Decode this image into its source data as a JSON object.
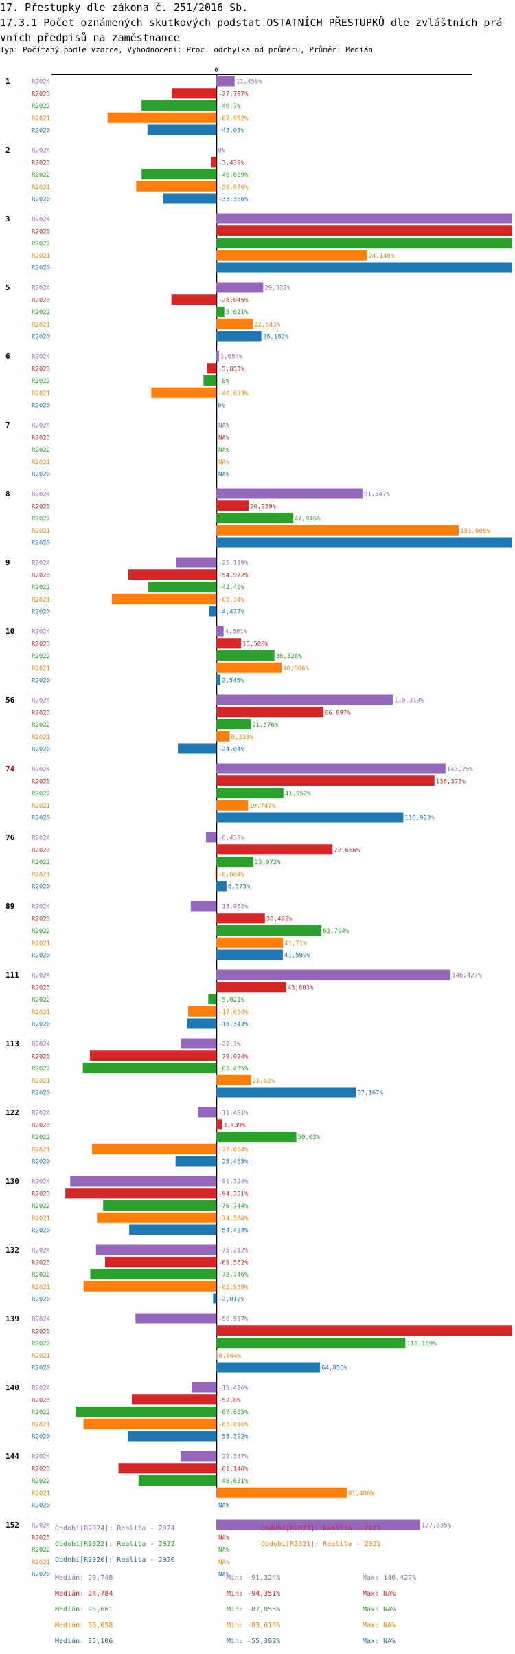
{
  "header": {
    "line1": "17. Přestupky dle zákona č. 251/2016 Sb.",
    "line2": "17.3.1 Počet oznámených skutkových podstat OSTATNÍCH PŘESTUPKŮ dle zvláštních prá",
    "line3": "vních předpisů na zaměstnance",
    "subtitle": "Typ: Počítaný podle vzorce, Vyhodnocení: Proc. odchylka od průměru, Průměr: Medián"
  },
  "colors": {
    "R2024": "#9467bd",
    "R2023": "#d62728",
    "R2022": "#2ca02c",
    "R2021": "#ff7f0e",
    "R2020": "#1f77b4",
    "highlight": "#cc0000",
    "axis": "#000000"
  },
  "chart_data": {
    "type": "bar",
    "orientation": "horizontal",
    "zero_label": "0",
    "xlim": [
      -100,
      185
    ],
    "series_order": [
      "R2024",
      "R2023",
      "R2022",
      "R2021",
      "R2020"
    ],
    "groups": [
      {
        "label": "1",
        "values": {
          "R2024": {
            "v": 11.456,
            "t": "11,456%"
          },
          "R2023": {
            "v": -27.797,
            "t": "-27,797%"
          },
          "R2022": {
            "v": -46.7,
            "t": "-46,7%"
          },
          "R2021": {
            "v": -67.952,
            "t": "-67,952%"
          },
          "R2020": {
            "v": -43.03,
            "t": "-43,03%"
          }
        }
      },
      {
        "label": "2",
        "values": {
          "R2024": {
            "v": 0,
            "t": "0%"
          },
          "R2023": {
            "v": -3.439,
            "t": "-3,439%"
          },
          "R2022": {
            "v": -46.669,
            "t": "-46,669%"
          },
          "R2021": {
            "v": -50.076,
            "t": "-50,076%"
          },
          "R2020": {
            "v": -33.366,
            "t": "-33,366%"
          }
        }
      },
      {
        "label": "3",
        "values": {
          "R2024": {
            "v": 185,
            "t": ""
          },
          "R2023": {
            "v": 185,
            "t": ""
          },
          "R2022": {
            "v": 185,
            "t": ""
          },
          "R2021": {
            "v": 94.148,
            "t": "94,148%"
          },
          "R2020": {
            "v": 185,
            "t": ""
          }
        }
      },
      {
        "label": "5",
        "values": {
          "R2024": {
            "v": 29.332,
            "t": "29,332%"
          },
          "R2023": {
            "v": -28.045,
            "t": "-28,045%"
          },
          "R2022": {
            "v": 5.021,
            "t": "5,021%"
          },
          "R2021": {
            "v": 22.843,
            "t": "22,843%"
          },
          "R2020": {
            "v": 28.182,
            "t": "28,182%"
          }
        }
      },
      {
        "label": "6",
        "values": {
          "R2024": {
            "v": 1.654,
            "t": "1,654%"
          },
          "R2023": {
            "v": -5.853,
            "t": "-5,853%"
          },
          "R2022": {
            "v": -8,
            "t": "-8%"
          },
          "R2021": {
            "v": -40.633,
            "t": "-40,633%"
          },
          "R2020": {
            "v": 0,
            "t": "0%"
          }
        }
      },
      {
        "label": "7",
        "values": {
          "R2024": {
            "v": null,
            "t": "NA%"
          },
          "R2023": {
            "v": null,
            "t": "NA%"
          },
          "R2022": {
            "v": null,
            "t": "NA%"
          },
          "R2021": {
            "v": null,
            "t": "NA%"
          },
          "R2020": {
            "v": null,
            "t": "NA%"
          }
        }
      },
      {
        "label": "8",
        "values": {
          "R2024": {
            "v": 91.347,
            "t": "91,347%"
          },
          "R2023": {
            "v": 20.239,
            "t": "20,239%"
          },
          "R2022": {
            "v": 47.946,
            "t": "47,946%"
          },
          "R2021": {
            "v": 151.608,
            "t": "151,608%"
          },
          "R2020": {
            "v": 185,
            "t": ""
          }
        }
      },
      {
        "label": "9",
        "values": {
          "R2024": {
            "v": -25.119,
            "t": "-25,119%"
          },
          "R2023": {
            "v": -54.972,
            "t": "-54,972%"
          },
          "R2022": {
            "v": -42.46,
            "t": "-42,46%"
          },
          "R2021": {
            "v": -65.34,
            "t": "-65,34%"
          },
          "R2020": {
            "v": -4.477,
            "t": "-4,477%"
          }
        }
      },
      {
        "label": "10",
        "values": {
          "R2024": {
            "v": 4.581,
            "t": "4,581%"
          },
          "R2023": {
            "v": 15.508,
            "t": "15,508%"
          },
          "R2022": {
            "v": 36.326,
            "t": "36,326%"
          },
          "R2021": {
            "v": 40.806,
            "t": "40,806%"
          },
          "R2020": {
            "v": 2.545,
            "t": "2,545%"
          }
        }
      },
      {
        "label": "56",
        "values": {
          "R2024": {
            "v": 110.319,
            "t": "110,319%"
          },
          "R2023": {
            "v": 66.897,
            "t": "66,897%"
          },
          "R2022": {
            "v": 21.576,
            "t": "21,576%"
          },
          "R2021": {
            "v": 8.333,
            "t": "8,333%"
          },
          "R2020": {
            "v": -24.04,
            "t": "-24,04%"
          }
        }
      },
      {
        "label": "74",
        "highlight": true,
        "values": {
          "R2024": {
            "v": 143.25,
            "t": "143,25%"
          },
          "R2023": {
            "v": 136.373,
            "t": "136,373%"
          },
          "R2022": {
            "v": 41.952,
            "t": "41,952%"
          },
          "R2021": {
            "v": 19.747,
            "t": "19,747%"
          },
          "R2020": {
            "v": 116.923,
            "t": "116,923%"
          }
        }
      },
      {
        "label": "76",
        "values": {
          "R2024": {
            "v": -6.439,
            "t": "-6,439%"
          },
          "R2023": {
            "v": 72.666,
            "t": "72,666%"
          },
          "R2022": {
            "v": 23.072,
            "t": "23,072%"
          },
          "R2021": {
            "v": -0.604,
            "t": "-0,604%"
          },
          "R2020": {
            "v": 6.373,
            "t": "6,373%"
          }
        }
      },
      {
        "label": "89",
        "values": {
          "R2024": {
            "v": -15.962,
            "t": "-15,962%"
          },
          "R2023": {
            "v": 30.402,
            "t": "30,402%"
          },
          "R2022": {
            "v": 65.794,
            "t": "65,794%"
          },
          "R2021": {
            "v": 41.71,
            "t": "41,71%"
          },
          "R2020": {
            "v": 41.599,
            "t": "41,599%"
          }
        }
      },
      {
        "label": "111",
        "values": {
          "R2024": {
            "v": 146.427,
            "t": "146,427%"
          },
          "R2023": {
            "v": 43.603,
            "t": "43,603%"
          },
          "R2022": {
            "v": -5.021,
            "t": "-5,021%"
          },
          "R2021": {
            "v": -17.634,
            "t": "-17,634%"
          },
          "R2020": {
            "v": -18.343,
            "t": "-18,343%"
          }
        }
      },
      {
        "label": "113",
        "values": {
          "R2024": {
            "v": -22.3,
            "t": "-22,3%"
          },
          "R2023": {
            "v": -79.024,
            "t": "-79,024%"
          },
          "R2022": {
            "v": -83.435,
            "t": "-83,435%"
          },
          "R2021": {
            "v": 21.62,
            "t": "21,62%"
          },
          "R2020": {
            "v": 87.167,
            "t": "87,167%"
          }
        }
      },
      {
        "label": "122",
        "values": {
          "R2024": {
            "v": -11.491,
            "t": "-11,491%"
          },
          "R2023": {
            "v": 3.439,
            "t": "3,439%"
          },
          "R2022": {
            "v": 50.03,
            "t": "50,03%"
          },
          "R2021": {
            "v": -77.654,
            "t": "-77,654%"
          },
          "R2020": {
            "v": -25.465,
            "t": "-25,465%"
          }
        }
      },
      {
        "label": "130",
        "values": {
          "R2024": {
            "v": -91.324,
            "t": "-91,324%"
          },
          "R2023": {
            "v": -94.351,
            "t": "-94,351%"
          },
          "R2022": {
            "v": -70.744,
            "t": "-70,744%"
          },
          "R2021": {
            "v": -74.584,
            "t": "-74,584%"
          },
          "R2020": {
            "v": -54.424,
            "t": "-54,424%"
          }
        }
      },
      {
        "label": "132",
        "values": {
          "R2024": {
            "v": -75.212,
            "t": "-75,212%"
          },
          "R2023": {
            "v": -69.562,
            "t": "-69,562%"
          },
          "R2022": {
            "v": -78.746,
            "t": "-78,746%"
          },
          "R2021": {
            "v": -82.939,
            "t": "-82,939%"
          },
          "R2020": {
            "v": -2.012,
            "t": "-2,012%"
          }
        }
      },
      {
        "label": "139",
        "values": {
          "R2024": {
            "v": -50.517,
            "t": "-50,517%"
          },
          "R2023": {
            "v": 185,
            "t": ""
          },
          "R2022": {
            "v": 118.169,
            "t": "118,169%"
          },
          "R2021": {
            "v": 0.604,
            "t": "0,604%"
          },
          "R2020": {
            "v": 64.856,
            "t": "64,856%"
          }
        }
      },
      {
        "label": "140",
        "values": {
          "R2024": {
            "v": -15.426,
            "t": "-15,426%"
          },
          "R2023": {
            "v": -52.8,
            "t": "-52,8%"
          },
          "R2022": {
            "v": -87.855,
            "t": "-87,855%"
          },
          "R2021": {
            "v": -83.016,
            "t": "-83,016%"
          },
          "R2020": {
            "v": -55.392,
            "t": "-55,392%"
          }
        }
      },
      {
        "label": "144",
        "values": {
          "R2024": {
            "v": -22.347,
            "t": "-22,347%"
          },
          "R2023": {
            "v": -61.146,
            "t": "-61,146%"
          },
          "R2022": {
            "v": -48.631,
            "t": "-48,631%"
          },
          "R2021": {
            "v": 81.486,
            "t": "81,486%"
          },
          "R2020": {
            "v": null,
            "t": "NA%"
          }
        }
      },
      {
        "label": "152",
        "values": {
          "R2024": {
            "v": 127.335,
            "t": "127,335%"
          },
          "R2023": {
            "v": null,
            "t": "NA%"
          },
          "R2022": {
            "v": null,
            "t": "NA%"
          },
          "R2021": {
            "v": null,
            "t": "NA%"
          },
          "R2020": {
            "v": null,
            "t": "NA%"
          }
        }
      }
    ],
    "legend": [
      {
        "key": "R2024",
        "text": "Období[R2024]: Realita - 2024"
      },
      {
        "key": "R2023",
        "text": "Období[R2023]: Realita - 2023"
      },
      {
        "key": "R2022",
        "text": "Období[R2022]: Realita - 2022"
      },
      {
        "key": "R2021",
        "text": "Období[R2021]: Realita - 2021"
      },
      {
        "key": "R2020",
        "text": "Období[R2020]: Realita - 2020"
      }
    ],
    "stats": [
      {
        "key": "R2024",
        "median": "Medián: 20,748",
        "min": "Min: -91,324%",
        "max": "Max: 146,427%"
      },
      {
        "key": "R2023",
        "median": "Medián: 24,784",
        "min": "Min: -94,351%",
        "max": "Max: NA%"
      },
      {
        "key": "R2022",
        "median": "Medián: 26,661",
        "min": "Min: -87,855%",
        "max": "Max: NA%"
      },
      {
        "key": "R2021",
        "median": "Medián: 56,658",
        "min": "Min: -83,016%",
        "max": "Max: NA%"
      },
      {
        "key": "R2020",
        "median": "Medián: 35,106",
        "min": "Min: -55,392%",
        "max": "Max: NA%"
      }
    ]
  }
}
